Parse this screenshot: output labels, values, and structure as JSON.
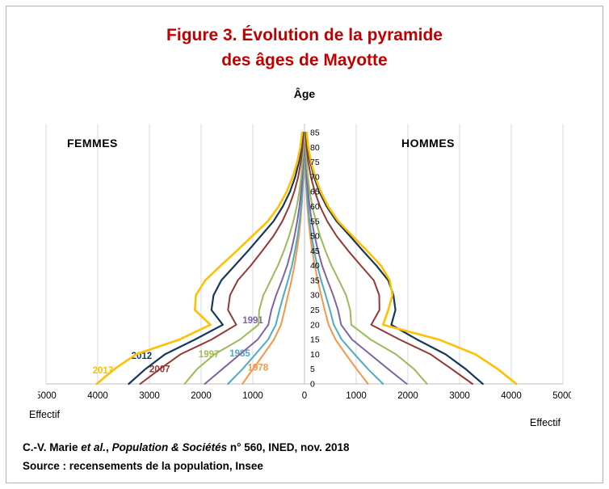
{
  "title": {
    "line1": "Figure 3. Évolution de la pyramide",
    "line2": "des âges de Mayotte"
  },
  "chart": {
    "age_axis_title": "Âge",
    "left_label": "FEMMES",
    "right_label": "HOMMES",
    "x_axis_title": "Effectif"
  },
  "caption": {
    "part1": "C.-V. Marie ",
    "part2": "et al.",
    "part3": ", ",
    "part4": "Population & Sociétés",
    "part5": " n° 560, INED, nov. 2018",
    "line2": "Source : recensements de la population, Insee"
  },
  "colors": {
    "title": "#C00000",
    "frame": "#9FB6CD",
    "grid": "#D9D9D9",
    "axis": "#BFBFBF"
  },
  "chart_data": {
    "type": "line",
    "title": "Évolution de la pyramide des âges de Mayotte",
    "layout": "population-pyramid",
    "xlabel": "Effectif",
    "ylabel": "Âge",
    "left_side": "FEMMES",
    "right_side": "HOMMES",
    "x_axis": {
      "max": 5000,
      "tick_values": [
        -5000,
        -4000,
        -3000,
        -2000,
        -1000,
        0,
        1000,
        2000,
        3000,
        4000,
        5000
      ],
      "tick_labels": [
        "5000",
        "4000",
        "3000",
        "2000",
        "1000",
        "0",
        "1000",
        "2000",
        "3000",
        "4000",
        "5000"
      ]
    },
    "ages": [
      0,
      5,
      10,
      15,
      20,
      25,
      30,
      35,
      40,
      45,
      50,
      55,
      60,
      65,
      70,
      75,
      80,
      85
    ],
    "series": [
      {
        "name": "1978",
        "color": "#F79646",
        "width": 2,
        "label_pos": {
          "x": -900,
          "age": 4.5
        },
        "femmes": [
          1200,
          1000,
          790,
          590,
          455,
          385,
          318,
          252,
          196,
          148,
          108,
          78,
          54,
          36,
          23,
          14,
          8,
          4
        ],
        "hommes": [
          1230,
          1010,
          800,
          600,
          465,
          390,
          322,
          256,
          198,
          150,
          110,
          80,
          55,
          37,
          24,
          15,
          9,
          4
        ]
      },
      {
        "name": "1985",
        "color": "#4BACC6",
        "width": 2,
        "label_pos": {
          "x": -1250,
          "age": 9.3
        },
        "femmes": [
          1480,
          1200,
          950,
          705,
          555,
          485,
          405,
          318,
          242,
          184,
          134,
          96,
          66,
          44,
          28,
          17,
          10,
          5
        ],
        "hommes": [
          1520,
          1230,
          970,
          720,
          565,
          492,
          410,
          322,
          246,
          187,
          137,
          98,
          68,
          45,
          29,
          18,
          10,
          5
        ]
      },
      {
        "name": "1991",
        "color": "#8064A2",
        "width": 2,
        "label_pos": {
          "x": -1000,
          "age": 20.5
        },
        "femmes": [
          1930,
          1590,
          1250,
          905,
          700,
          640,
          548,
          438,
          336,
          258,
          193,
          140,
          98,
          66,
          42,
          26,
          15,
          8
        ],
        "hommes": [
          1980,
          1620,
          1270,
          920,
          710,
          648,
          554,
          444,
          340,
          262,
          196,
          142,
          100,
          68,
          43,
          27,
          16,
          8
        ]
      },
      {
        "name": "1997",
        "color": "#9BBB59",
        "width": 2,
        "label_pos": {
          "x": -1850,
          "age": 9
        },
        "femmes": [
          2320,
          2080,
          1740,
          1250,
          890,
          875,
          795,
          655,
          515,
          398,
          298,
          215,
          150,
          100,
          65,
          40,
          22,
          12
        ],
        "hommes": [
          2370,
          2120,
          1770,
          1280,
          905,
          885,
          805,
          665,
          522,
          404,
          302,
          218,
          152,
          102,
          66,
          41,
          23,
          12
        ]
      },
      {
        "name": "2007",
        "color": "#953735",
        "width": 2,
        "label_pos": {
          "x": -2800,
          "age": 4
        },
        "femmes": [
          3180,
          2800,
          2400,
          1800,
          1320,
          1480,
          1440,
          1290,
          1040,
          815,
          600,
          430,
          298,
          198,
          122,
          72,
          40,
          20
        ],
        "hommes": [
          3250,
          2850,
          2440,
          1840,
          1290,
          1450,
          1445,
          1340,
          1090,
          845,
          620,
          440,
          302,
          200,
          124,
          74,
          41,
          20
        ]
      },
      {
        "name": "2012",
        "color": "#17375D",
        "width": 2.2,
        "label_pos": {
          "x": -3150,
          "age": 8.5
        },
        "femmes": [
          3400,
          3080,
          2700,
          2120,
          1580,
          1800,
          1760,
          1610,
          1350,
          1090,
          845,
          600,
          420,
          282,
          180,
          110,
          62,
          32
        ],
        "hommes": [
          3450,
          3120,
          2730,
          2180,
          1680,
          1760,
          1720,
          1620,
          1390,
          1130,
          880,
          620,
          430,
          288,
          184,
          112,
          63,
          32
        ]
      },
      {
        "name": "2017",
        "color": "#FFC000",
        "width": 2.6,
        "label_pos": {
          "x": -3900,
          "age": 3.5
        },
        "femmes": [
          4020,
          3680,
          3260,
          2420,
          1820,
          2120,
          2100,
          1920,
          1620,
          1310,
          1010,
          710,
          500,
          345,
          228,
          140,
          82,
          45
        ],
        "hommes": [
          4100,
          3740,
          3310,
          2600,
          1520,
          1620,
          1700,
          1650,
          1480,
          1210,
          930,
          655,
          460,
          315,
          208,
          128,
          74,
          40
        ]
      }
    ]
  }
}
